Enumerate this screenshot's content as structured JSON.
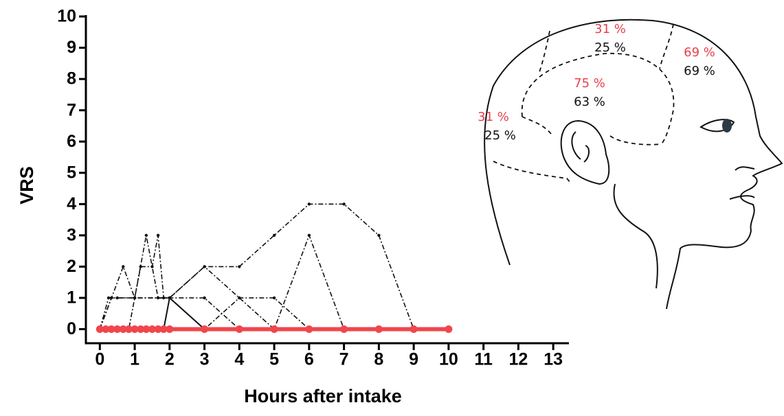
{
  "chart_data": {
    "type": "line",
    "xlabel": "Hours after intake",
    "ylabel": "VRS",
    "xlim": [
      -0.4,
      13.45
    ],
    "ylim": [
      -0.45,
      10
    ],
    "xticks": [
      0,
      1,
      2,
      3,
      4,
      5,
      6,
      7,
      8,
      9,
      10,
      11,
      12,
      13
    ],
    "yticks": [
      0,
      1,
      2,
      3,
      4,
      5,
      6,
      7,
      8,
      9,
      10
    ],
    "series": [
      {
        "color": "#111111",
        "linestyle": "dashdot",
        "x": [
          0,
          0.25,
          0.5,
          1,
          2,
          3,
          4,
          5,
          6,
          7,
          8,
          9,
          10
        ],
        "values": [
          0,
          1,
          1,
          1,
          1,
          2,
          2,
          3,
          4,
          4,
          3,
          0,
          0
        ]
      },
      {
        "color": "#111111",
        "linestyle": "dashdot",
        "x": [
          0,
          0.67,
          1,
          2,
          3,
          4,
          5,
          6,
          7,
          8,
          9,
          10
        ],
        "values": [
          0,
          2,
          1,
          1,
          1,
          0,
          0,
          3,
          0,
          0,
          0,
          0
        ]
      },
      {
        "color": "#111111",
        "linestyle": "dashdot",
        "x": [
          0,
          0.33,
          1,
          1.33,
          1.67,
          2,
          3,
          4,
          5,
          6,
          7
        ],
        "values": [
          0,
          1,
          1,
          3,
          1,
          1,
          0,
          1,
          1,
          0,
          0
        ]
      },
      {
        "color": "#111111",
        "linestyle": "dashdot",
        "x": [
          0,
          0.83,
          1.17,
          1.5,
          1.67,
          1.83,
          2,
          3,
          4,
          5
        ],
        "values": [
          0,
          0,
          2,
          2,
          3,
          1,
          1,
          2,
          1,
          0
        ]
      },
      {
        "color": "#111111",
        "linestyle": "solid",
        "x": [
          0,
          1.83,
          2,
          3,
          4
        ],
        "values": [
          0,
          0,
          1,
          0,
          0
        ]
      },
      {
        "color": "#f0464c",
        "linestyle": "bold",
        "x": [
          0,
          0.17,
          0.33,
          0.5,
          0.67,
          0.83,
          1,
          1.17,
          1.33,
          1.5,
          1.67,
          1.83,
          2,
          3,
          4,
          5,
          6,
          7,
          8,
          9,
          10
        ],
        "values": [
          0,
          0,
          0,
          0,
          0,
          0,
          0,
          0,
          0,
          0,
          0,
          0,
          0,
          0,
          0,
          0,
          0,
          0,
          0,
          0,
          0
        ]
      }
    ]
  },
  "head": {
    "regions": [
      {
        "red": "31 %",
        "black": "25 %"
      },
      {
        "red": "69 %",
        "black": "69 %"
      },
      {
        "red": "75 %",
        "black": "63 %"
      },
      {
        "red": "31 %",
        "black": "25 %"
      }
    ]
  }
}
